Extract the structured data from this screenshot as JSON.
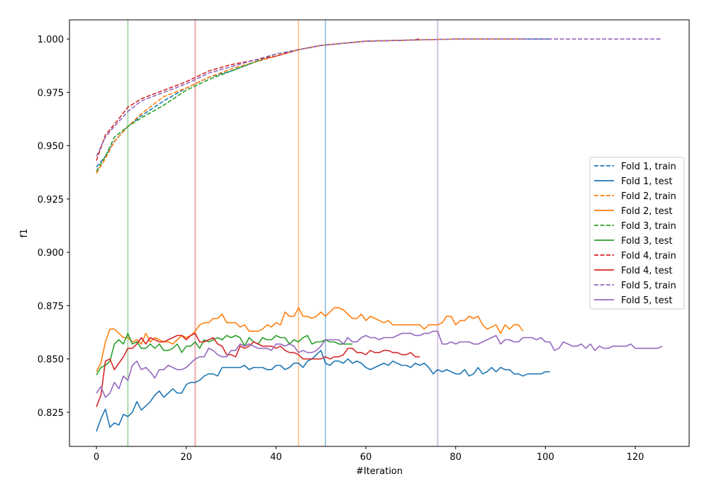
{
  "chart_data": {
    "type": "line",
    "title": "",
    "xlabel": "#Iteration",
    "ylabel": "f1",
    "xlim": [
      -6,
      132
    ],
    "ylim": [
      0.809,
      1.009
    ],
    "xticks": [
      0,
      20,
      40,
      60,
      80,
      100,
      120
    ],
    "yticks": [
      0.825,
      0.85,
      0.875,
      0.9,
      0.925,
      0.95,
      0.975,
      1.0
    ],
    "xtick_labels": [
      "0",
      "20",
      "40",
      "60",
      "80",
      "100",
      "120"
    ],
    "ytick_labels": [
      "0.825",
      "0.850",
      "0.875",
      "0.900",
      "0.925",
      "0.950",
      "0.975",
      "1.000"
    ],
    "grid": false,
    "legend_position": "center-right",
    "vertical_lines": [
      {
        "x": 7,
        "color": "#2ca02c"
      },
      {
        "x": 22,
        "color": "#d62728"
      },
      {
        "x": 45,
        "color": "#ff7f0e"
      },
      {
        "x": 51,
        "color": "#1f77b4"
      },
      {
        "x": 76,
        "color": "#9467bd"
      }
    ],
    "series": [
      {
        "name": "Fold 1, train",
        "color": "#1f77b4",
        "dashed": true,
        "points": [
          [
            0,
            0.94
          ],
          [
            2,
            0.945
          ],
          [
            4,
            0.952
          ],
          [
            7,
            0.959
          ],
          [
            10,
            0.964
          ],
          [
            15,
            0.971
          ],
          [
            20,
            0.977
          ],
          [
            25,
            0.982
          ],
          [
            30,
            0.985
          ],
          [
            35,
            0.989
          ],
          [
            40,
            0.992
          ],
          [
            45,
            0.995
          ],
          [
            50,
            0.997
          ],
          [
            55,
            0.998
          ],
          [
            60,
            0.999
          ],
          [
            70,
            0.9995
          ],
          [
            80,
            1.0
          ],
          [
            90,
            1.0
          ],
          [
            101,
            1.0
          ]
        ]
      },
      {
        "name": "Fold 1, test",
        "color": "#1f77b4",
        "dashed": false,
        "values": [
          0.816,
          0.822,
          0.8265,
          0.818,
          0.82,
          0.819,
          0.824,
          0.823,
          0.825,
          0.83,
          0.826,
          0.828,
          0.83,
          0.833,
          0.835,
          0.832,
          0.834,
          0.836,
          0.834,
          0.834,
          0.838,
          0.839,
          0.839,
          0.84,
          0.842,
          0.843,
          0.843,
          0.842,
          0.846,
          0.846,
          0.846,
          0.846,
          0.846,
          0.847,
          0.845,
          0.846,
          0.846,
          0.846,
          0.845,
          0.845,
          0.847,
          0.847,
          0.845,
          0.846,
          0.848,
          0.848,
          0.846,
          0.849,
          0.85,
          0.852,
          0.854,
          0.848,
          0.847,
          0.849,
          0.849,
          0.848,
          0.85,
          0.848,
          0.849,
          0.848,
          0.846,
          0.845,
          0.846,
          0.847,
          0.848,
          0.847,
          0.849,
          0.848,
          0.847,
          0.847,
          0.846,
          0.848,
          0.847,
          0.848,
          0.846,
          0.843,
          0.845,
          0.844,
          0.845,
          0.844,
          0.843,
          0.843,
          0.845,
          0.842,
          0.843,
          0.846,
          0.843,
          0.844,
          0.846,
          0.844,
          0.846,
          0.845,
          0.845,
          0.843,
          0.843,
          0.842,
          0.843,
          0.843,
          0.843,
          0.843,
          0.844,
          0.844
        ]
      },
      {
        "name": "Fold 2, train",
        "color": "#ff7f0e",
        "dashed": true,
        "points": [
          [
            0,
            0.937
          ],
          [
            2,
            0.944
          ],
          [
            4,
            0.952
          ],
          [
            7,
            0.959
          ],
          [
            10,
            0.965
          ],
          [
            15,
            0.973
          ],
          [
            20,
            0.977
          ],
          [
            25,
            0.982
          ],
          [
            30,
            0.986
          ],
          [
            35,
            0.989
          ],
          [
            40,
            0.992
          ],
          [
            45,
            0.995
          ],
          [
            50,
            0.997
          ],
          [
            55,
            0.998
          ],
          [
            60,
            0.999
          ],
          [
            70,
            0.9995
          ],
          [
            80,
            1.0
          ],
          [
            95,
            1.0
          ]
        ]
      },
      {
        "name": "Fold 2, test",
        "color": "#ff7f0e",
        "dashed": false,
        "values": [
          0.844,
          0.848,
          0.858,
          0.864,
          0.864,
          0.862,
          0.86,
          0.86,
          0.858,
          0.859,
          0.857,
          0.862,
          0.858,
          0.86,
          0.859,
          0.858,
          0.858,
          0.857,
          0.859,
          0.861,
          0.86,
          0.861,
          0.863,
          0.866,
          0.867,
          0.867,
          0.869,
          0.869,
          0.871,
          0.867,
          0.867,
          0.867,
          0.865,
          0.866,
          0.863,
          0.863,
          0.863,
          0.864,
          0.866,
          0.865,
          0.867,
          0.866,
          0.872,
          0.87,
          0.87,
          0.874,
          0.87,
          0.87,
          0.869,
          0.87,
          0.872,
          0.87,
          0.872,
          0.874,
          0.874,
          0.873,
          0.871,
          0.869,
          0.869,
          0.871,
          0.868,
          0.87,
          0.869,
          0.868,
          0.867,
          0.868,
          0.866,
          0.866,
          0.866,
          0.866,
          0.866,
          0.866,
          0.866,
          0.864,
          0.866,
          0.866,
          0.866,
          0.867,
          0.87,
          0.87,
          0.866,
          0.868,
          0.868,
          0.87,
          0.869,
          0.87,
          0.866,
          0.864,
          0.865,
          0.866,
          0.862,
          0.866,
          0.864,
          0.866,
          0.866,
          0.863
        ]
      },
      {
        "name": "Fold 3, train",
        "color": "#2ca02c",
        "dashed": true,
        "points": [
          [
            0,
            0.938
          ],
          [
            2,
            0.945
          ],
          [
            4,
            0.954
          ],
          [
            7,
            0.959
          ],
          [
            10,
            0.963
          ],
          [
            15,
            0.969
          ],
          [
            20,
            0.976
          ],
          [
            25,
            0.981
          ],
          [
            30,
            0.985
          ],
          [
            35,
            0.989
          ],
          [
            40,
            0.993
          ],
          [
            45,
            0.995
          ],
          [
            50,
            0.997
          ],
          [
            55,
            0.998
          ],
          [
            60,
            0.999
          ],
          [
            70,
            0.9995
          ],
          [
            72,
            1.0
          ]
        ]
      },
      {
        "name": "Fold 3, test",
        "color": "#2ca02c",
        "dashed": false,
        "values": [
          0.8425,
          0.846,
          0.847,
          0.849,
          0.857,
          0.859,
          0.857,
          0.862,
          0.857,
          0.858,
          0.855,
          0.855,
          0.857,
          0.855,
          0.857,
          0.854,
          0.854,
          0.855,
          0.857,
          0.853,
          0.856,
          0.856,
          0.858,
          0.855,
          0.859,
          0.858,
          0.859,
          0.86,
          0.859,
          0.861,
          0.86,
          0.861,
          0.86,
          0.856,
          0.86,
          0.858,
          0.857,
          0.86,
          0.859,
          0.859,
          0.861,
          0.86,
          0.86,
          0.857,
          0.859,
          0.858,
          0.86,
          0.861,
          0.857,
          0.858,
          0.858,
          0.859,
          0.858,
          0.858,
          0.857,
          0.857,
          0.857,
          0.857
        ]
      },
      {
        "name": "Fold 4, train",
        "color": "#d62728",
        "dashed": true,
        "points": [
          [
            0,
            0.943
          ],
          [
            2,
            0.955
          ],
          [
            4,
            0.96
          ],
          [
            7,
            0.968
          ],
          [
            10,
            0.972
          ],
          [
            15,
            0.976
          ],
          [
            20,
            0.98
          ],
          [
            25,
            0.985
          ],
          [
            30,
            0.988
          ],
          [
            35,
            0.99
          ],
          [
            40,
            0.992
          ],
          [
            45,
            0.995
          ],
          [
            50,
            0.997
          ],
          [
            55,
            0.998
          ],
          [
            60,
            0.999
          ],
          [
            70,
            0.9995
          ],
          [
            72,
            1.0
          ]
        ]
      },
      {
        "name": "Fold 4, test",
        "color": "#d62728",
        "dashed": false,
        "values": [
          0.8275,
          0.833,
          0.849,
          0.85,
          0.845,
          0.848,
          0.851,
          0.855,
          0.855,
          0.857,
          0.86,
          0.857,
          0.86,
          0.859,
          0.858,
          0.858,
          0.859,
          0.86,
          0.861,
          0.861,
          0.859,
          0.861,
          0.862,
          0.858,
          0.858,
          0.859,
          0.86,
          0.857,
          0.856,
          0.852,
          0.852,
          0.851,
          0.856,
          0.855,
          0.856,
          0.858,
          0.857,
          0.856,
          0.856,
          0.856,
          0.855,
          0.856,
          0.854,
          0.853,
          0.853,
          0.852,
          0.85,
          0.85,
          0.85,
          0.85,
          0.85,
          0.851,
          0.85,
          0.851,
          0.851,
          0.852,
          0.855,
          0.855,
          0.853,
          0.853,
          0.852,
          0.854,
          0.853,
          0.853,
          0.854,
          0.854,
          0.853,
          0.853,
          0.852,
          0.852,
          0.853,
          0.851,
          0.851
        ]
      },
      {
        "name": "Fold 5, train",
        "color": "#9467bd",
        "dashed": true,
        "points": [
          [
            0,
            0.945
          ],
          [
            2,
            0.954
          ],
          [
            4,
            0.959
          ],
          [
            7,
            0.966
          ],
          [
            10,
            0.971
          ],
          [
            15,
            0.975
          ],
          [
            20,
            0.979
          ],
          [
            25,
            0.984
          ],
          [
            30,
            0.987
          ],
          [
            35,
            0.99
          ],
          [
            40,
            0.993
          ],
          [
            45,
            0.995
          ],
          [
            50,
            0.997
          ],
          [
            55,
            0.998
          ],
          [
            60,
            0.999
          ],
          [
            70,
            0.9995
          ],
          [
            80,
            1.0
          ],
          [
            100,
            1.0
          ],
          [
            126,
            1.0
          ]
        ]
      },
      {
        "name": "Fold 5, test",
        "color": "#9467bd",
        "dashed": false,
        "values": [
          0.834,
          0.837,
          0.832,
          0.834,
          0.839,
          0.836,
          0.842,
          0.84,
          0.847,
          0.849,
          0.845,
          0.846,
          0.844,
          0.841,
          0.845,
          0.845,
          0.847,
          0.846,
          0.845,
          0.845,
          0.846,
          0.848,
          0.85,
          0.851,
          0.851,
          0.855,
          0.854,
          0.852,
          0.851,
          0.851,
          0.854,
          0.854,
          0.857,
          0.856,
          0.857,
          0.856,
          0.855,
          0.855,
          0.855,
          0.854,
          0.857,
          0.857,
          0.856,
          0.857,
          0.856,
          0.853,
          0.854,
          0.853,
          0.853,
          0.854,
          0.856,
          0.859,
          0.859,
          0.859,
          0.859,
          0.857,
          0.86,
          0.858,
          0.858,
          0.86,
          0.861,
          0.86,
          0.86,
          0.859,
          0.86,
          0.86,
          0.86,
          0.861,
          0.862,
          0.862,
          0.862,
          0.861,
          0.861,
          0.862,
          0.862,
          0.863,
          0.863,
          0.857,
          0.857,
          0.858,
          0.857,
          0.858,
          0.858,
          0.858,
          0.857,
          0.857,
          0.858,
          0.859,
          0.86,
          0.861,
          0.857,
          0.859,
          0.859,
          0.858,
          0.858,
          0.86,
          0.86,
          0.86,
          0.859,
          0.86,
          0.858,
          0.858,
          0.854,
          0.855,
          0.858,
          0.857,
          0.856,
          0.856,
          0.857,
          0.855,
          0.857,
          0.854,
          0.856,
          0.855,
          0.855,
          0.856,
          0.856,
          0.856,
          0.856,
          0.857,
          0.855,
          0.855,
          0.855,
          0.855,
          0.855,
          0.855,
          0.856
        ]
      }
    ]
  }
}
